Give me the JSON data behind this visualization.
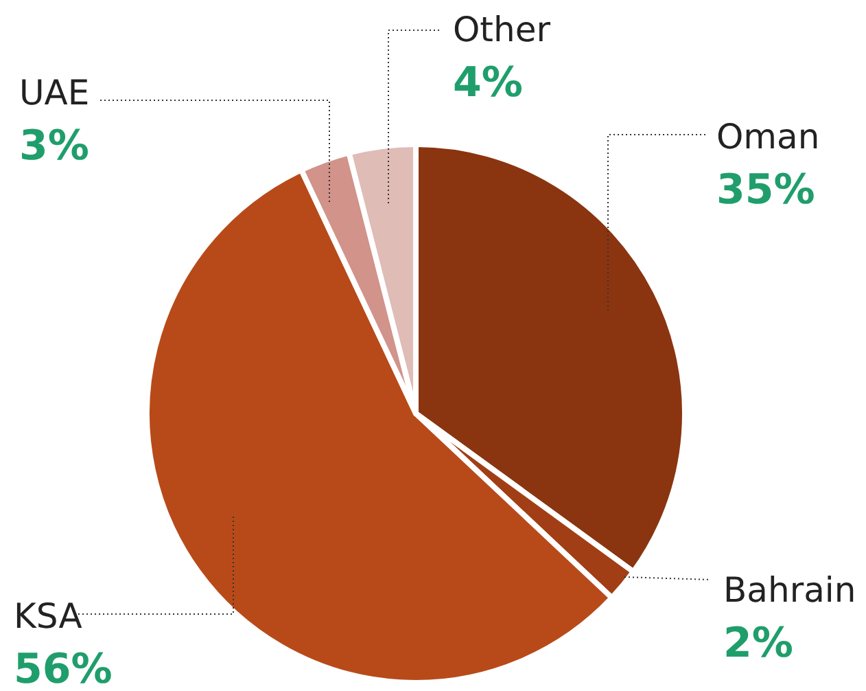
{
  "chart_data": {
    "type": "pie",
    "categories": [
      "Oman",
      "Bahrain",
      "KSA",
      "UAE",
      "Other"
    ],
    "values": [
      35,
      2,
      56,
      3,
      4
    ],
    "value_labels": [
      "35%",
      "2%",
      "56%",
      "3%",
      "4%"
    ],
    "colors": [
      "#8a3510",
      "#a23e15",
      "#b84a19",
      "#d1938a",
      "#dfbcb6"
    ]
  }
}
